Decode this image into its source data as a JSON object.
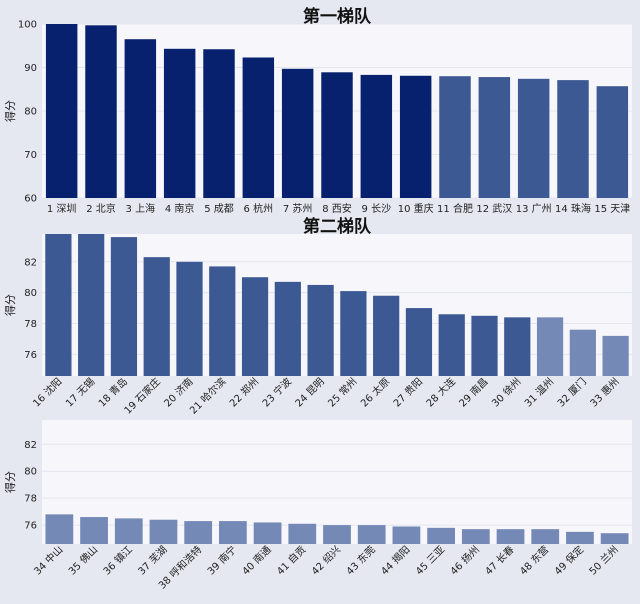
{
  "chart_data": [
    {
      "type": "bar",
      "title": "第一梯队",
      "ylabel": "得分",
      "ylim": [
        60,
        100
      ],
      "yticks": [
        60,
        70,
        80,
        90,
        100
      ],
      "grid": true,
      "label_rotation": 0,
      "categories": [
        "1 深圳",
        "2 北京",
        "3 上海",
        "4 南京",
        "5 成都",
        "6 杭州",
        "7 苏州",
        "8 西安",
        "9 长沙",
        "10 重庆",
        "11 合肥",
        "12 武汉",
        "13 广州",
        "14 珠海",
        "15 天津"
      ],
      "values": [
        100,
        99.7,
        96.5,
        94.3,
        94.2,
        92.3,
        89.7,
        88.9,
        88.3,
        88.1,
        88.0,
        87.8,
        87.4,
        87.1,
        85.7
      ],
      "colors": [
        "#08216e",
        "#08216e",
        "#08216e",
        "#08216e",
        "#08216e",
        "#08216e",
        "#08216e",
        "#08216e",
        "#08216e",
        "#08216e",
        "#3d5993",
        "#3d5993",
        "#3d5993",
        "#3d5993",
        "#3d5993"
      ]
    },
    {
      "type": "bar",
      "title": "第二梯队",
      "ylabel": "得分",
      "ylim": [
        74.6,
        83.8
      ],
      "yticks": [
        76,
        78,
        80,
        82
      ],
      "grid": true,
      "label_rotation": -45,
      "categories": [
        "16 沈阳",
        "17 无锡",
        "18 青岛",
        "19 石家庄",
        "20 济南",
        "21 哈尔滨",
        "22 郑州",
        "23 宁波",
        "24 昆明",
        "25 常州",
        "26 太原",
        "27 贵阳",
        "28 大连",
        "29 南昌",
        "30 徐州",
        "31 温州",
        "32 厦门",
        "33 惠州"
      ],
      "values": [
        83.8,
        83.8,
        83.6,
        82.3,
        82.0,
        81.7,
        81.0,
        80.7,
        80.5,
        80.1,
        79.8,
        79.0,
        78.6,
        78.5,
        78.4,
        78.4,
        77.6,
        77.2
      ],
      "colors": [
        "#3d5993",
        "#3d5993",
        "#3d5993",
        "#3d5993",
        "#3d5993",
        "#3d5993",
        "#3d5993",
        "#3d5993",
        "#3d5993",
        "#3d5993",
        "#3d5993",
        "#3d5993",
        "#3d5993",
        "#3d5993",
        "#3d5993",
        "#7589b7",
        "#7589b7",
        "#7589b7"
      ]
    },
    {
      "type": "bar",
      "title": "",
      "ylabel": "得分",
      "ylim": [
        74.6,
        83.8
      ],
      "yticks": [
        76,
        78,
        80,
        82
      ],
      "grid": true,
      "label_rotation": -45,
      "categories": [
        "34 中山",
        "35 佛山",
        "36 镇江",
        "37 芜湖",
        "38 呼和浩特",
        "39 南宁",
        "40 南通",
        "41 自贡",
        "42 绍兴",
        "43 东莞",
        "44 揭阳",
        "45 三亚",
        "46 扬州",
        "47 长春",
        "48 东营",
        "49 保定",
        "50 兰州"
      ],
      "values": [
        76.8,
        76.6,
        76.5,
        76.4,
        76.3,
        76.3,
        76.2,
        76.1,
        76.0,
        76.0,
        75.9,
        75.8,
        75.7,
        75.7,
        75.7,
        75.5,
        75.4
      ],
      "colors": [
        "#7589b7",
        "#7589b7",
        "#7589b7",
        "#7589b7",
        "#7589b7",
        "#7589b7",
        "#7589b7",
        "#7589b7",
        "#7589b7",
        "#7589b7",
        "#7589b7",
        "#7589b7",
        "#7589b7",
        "#7589b7",
        "#7589b7",
        "#7589b7",
        "#7589b7"
      ]
    }
  ]
}
